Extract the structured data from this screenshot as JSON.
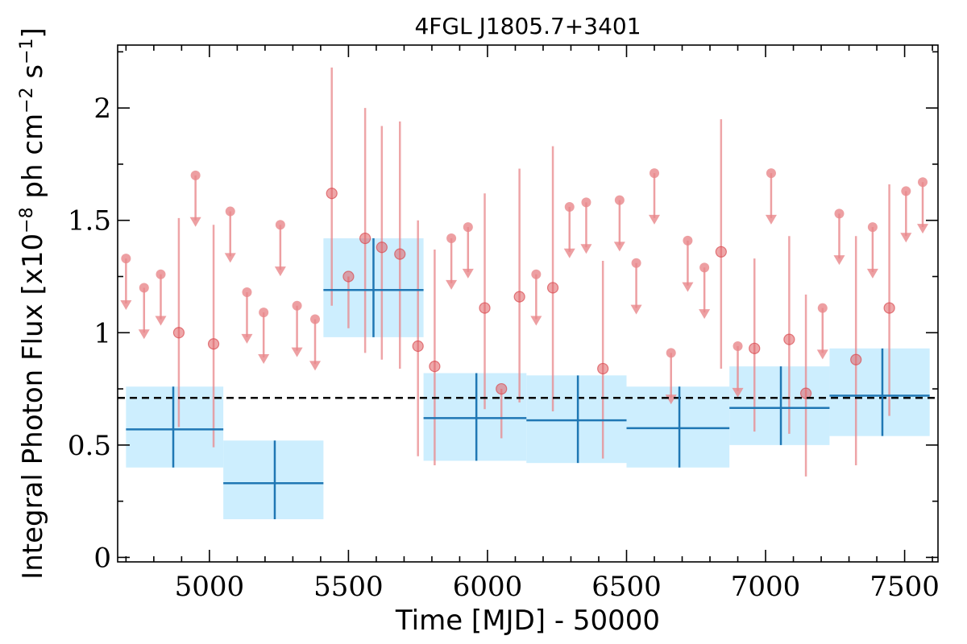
{
  "chart_data": {
    "type": "scatter",
    "title": "4FGL J1805.7+3401",
    "xlabel": "Time [MJD] - 50000",
    "ylabel": "Integral Photon Flux [x10^-8 ph cm^-2 s^-1]",
    "xlim": [
      4670,
      7620
    ],
    "ylim": [
      -0.02,
      2.28
    ],
    "xticks": [
      "5000",
      "5500",
      "6000",
      "6500",
      "7000",
      "7500"
    ],
    "yticks": [
      "0",
      "0.5",
      "1",
      "1.5",
      "2"
    ],
    "average_flux": 0.71,
    "colors": {
      "short_bins": "#e8878b",
      "long_bins": "#1f77b4",
      "long_bin_box": "#cdeefe",
      "average_line": "#000000"
    },
    "long_bins": [
      {
        "x": 4870,
        "x_start": 4700,
        "x_end": 5050,
        "y": 0.57,
        "y_low": 0.4,
        "y_high": 0.76
      },
      {
        "x": 5235,
        "x_start": 5050,
        "x_end": 5410,
        "y": 0.33,
        "y_low": 0.17,
        "y_high": 0.52
      },
      {
        "x": 5590,
        "x_start": 5410,
        "x_end": 5770,
        "y": 1.19,
        "y_low": 0.98,
        "y_high": 1.42
      },
      {
        "x": 5960,
        "x_start": 5770,
        "x_end": 6140,
        "y": 0.62,
        "y_low": 0.43,
        "y_high": 0.82
      },
      {
        "x": 6325,
        "x_start": 6140,
        "x_end": 6500,
        "y": 0.61,
        "y_low": 0.42,
        "y_high": 0.81
      },
      {
        "x": 6690,
        "x_start": 6500,
        "x_end": 6870,
        "y": 0.575,
        "y_low": 0.4,
        "y_high": 0.76
      },
      {
        "x": 7055,
        "x_start": 6870,
        "x_end": 7230,
        "y": 0.665,
        "y_low": 0.5,
        "y_high": 0.85
      },
      {
        "x": 7420,
        "x_start": 7230,
        "x_end": 7590,
        "y": 0.72,
        "y_low": 0.54,
        "y_high": 0.93
      }
    ],
    "short_bin_points": [
      {
        "x": 4890,
        "y": 1.0,
        "y_low": 0.58,
        "y_high": 1.51
      },
      {
        "x": 5015,
        "y": 0.95,
        "y_low": 0.49,
        "y_high": 1.48
      },
      {
        "x": 5440,
        "y": 1.62,
        "y_low": 1.12,
        "y_high": 2.18
      },
      {
        "x": 5500,
        "y": 1.25,
        "y_low": 1.02,
        "y_high": 1.25
      },
      {
        "x": 5560,
        "y": 1.42,
        "y_low": 0.91,
        "y_high": 2.0
      },
      {
        "x": 5620,
        "y": 1.38,
        "y_low": 0.88,
        "y_high": 1.92
      },
      {
        "x": 5685,
        "y": 1.35,
        "y_low": 0.84,
        "y_high": 1.94
      },
      {
        "x": 5750,
        "y": 0.94,
        "y_low": 0.45,
        "y_high": 1.5
      },
      {
        "x": 5810,
        "y": 0.85,
        "y_low": 0.41,
        "y_high": 1.37
      },
      {
        "x": 5990,
        "y": 1.11,
        "y_low": 0.66,
        "y_high": 1.62
      },
      {
        "x": 6050,
        "y": 0.75,
        "y_low": 0.53,
        "y_high": 0.75
      },
      {
        "x": 6115,
        "y": 1.16,
        "y_low": 0.69,
        "y_high": 1.73
      },
      {
        "x": 6235,
        "y": 1.2,
        "y_low": 0.65,
        "y_high": 1.83
      },
      {
        "x": 6415,
        "y": 0.84,
        "y_low": 0.44,
        "y_high": 1.32
      },
      {
        "x": 6840,
        "y": 1.36,
        "y_low": 0.84,
        "y_high": 1.95
      },
      {
        "x": 6960,
        "y": 0.93,
        "y_low": 0.56,
        "y_high": 1.33
      },
      {
        "x": 7085,
        "y": 0.97,
        "y_low": 0.55,
        "y_high": 1.43
      },
      {
        "x": 7145,
        "y": 0.73,
        "y_low": 0.36,
        "y_high": 1.17
      },
      {
        "x": 7325,
        "y": 0.88,
        "y_low": 0.41,
        "y_high": 1.43
      },
      {
        "x": 7445,
        "y": 1.11,
        "y_low": 0.63,
        "y_high": 1.66
      }
    ],
    "short_bin_upper_limits": [
      {
        "x": 4700,
        "y": 1.33
      },
      {
        "x": 4765,
        "y": 1.2
      },
      {
        "x": 4825,
        "y": 1.26
      },
      {
        "x": 4950,
        "y": 1.7
      },
      {
        "x": 5075,
        "y": 1.54
      },
      {
        "x": 5135,
        "y": 1.18
      },
      {
        "x": 5195,
        "y": 1.09
      },
      {
        "x": 5255,
        "y": 1.48
      },
      {
        "x": 5315,
        "y": 1.12
      },
      {
        "x": 5380,
        "y": 1.06
      },
      {
        "x": 5870,
        "y": 1.42
      },
      {
        "x": 5930,
        "y": 1.47
      },
      {
        "x": 6175,
        "y": 1.26
      },
      {
        "x": 6295,
        "y": 1.56
      },
      {
        "x": 6355,
        "y": 1.58
      },
      {
        "x": 6475,
        "y": 1.59
      },
      {
        "x": 6535,
        "y": 1.31
      },
      {
        "x": 6600,
        "y": 1.71
      },
      {
        "x": 6660,
        "y": 0.91
      },
      {
        "x": 6720,
        "y": 1.41
      },
      {
        "x": 6780,
        "y": 1.29
      },
      {
        "x": 6900,
        "y": 0.94
      },
      {
        "x": 7020,
        "y": 1.71
      },
      {
        "x": 7205,
        "y": 1.11
      },
      {
        "x": 7265,
        "y": 1.53
      },
      {
        "x": 7385,
        "y": 1.47
      },
      {
        "x": 7505,
        "y": 1.63
      },
      {
        "x": 7565,
        "y": 1.67
      }
    ]
  }
}
